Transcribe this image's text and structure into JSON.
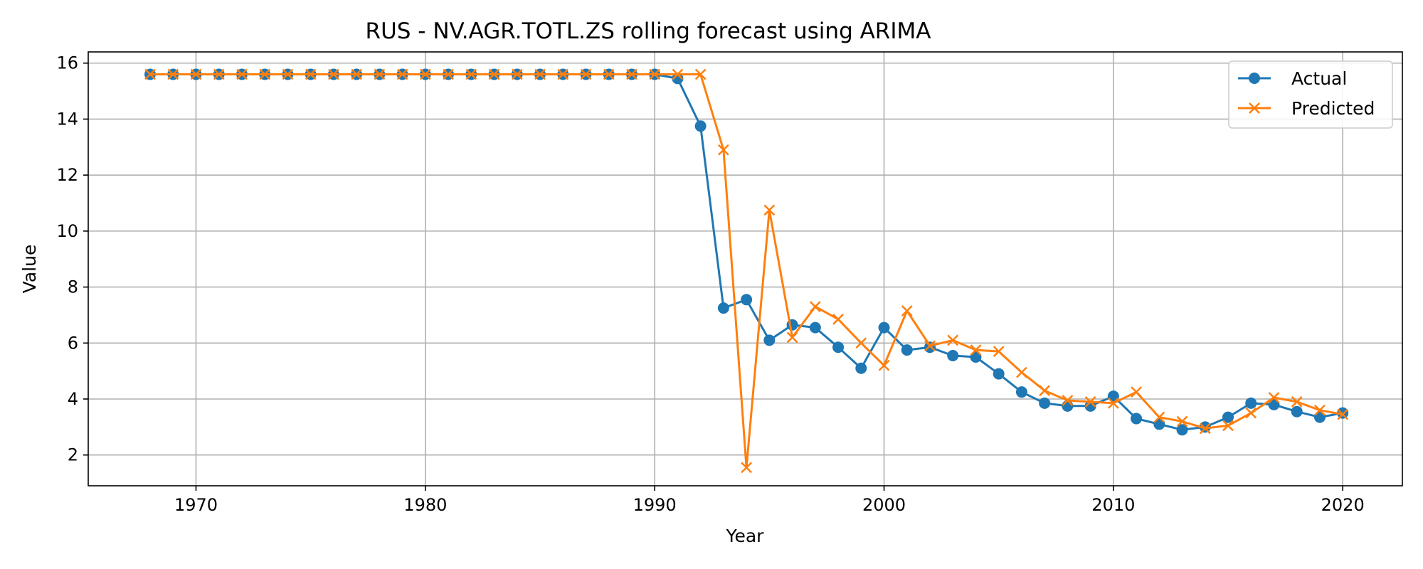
{
  "chart_data": {
    "type": "line",
    "title": "RUS - NV.AGR.TOTL.ZS rolling forecast using ARIMA",
    "xlabel": "Year",
    "ylabel": "Value",
    "xlim": [
      1965.3,
      2022.6
    ],
    "ylim": [
      0.9,
      16.4
    ],
    "xticks": [
      1970,
      1980,
      1990,
      2000,
      2010,
      2020
    ],
    "yticks": [
      2,
      4,
      6,
      8,
      10,
      12,
      14,
      16
    ],
    "grid": true,
    "legend_position": "top-right",
    "x": [
      1968,
      1969,
      1970,
      1971,
      1972,
      1973,
      1974,
      1975,
      1976,
      1977,
      1978,
      1979,
      1980,
      1981,
      1982,
      1983,
      1984,
      1985,
      1986,
      1987,
      1988,
      1989,
      1990,
      1991,
      1992,
      1993,
      1994,
      1995,
      1996,
      1997,
      1998,
      1999,
      2000,
      2001,
      2002,
      2003,
      2004,
      2005,
      2006,
      2007,
      2008,
      2009,
      2010,
      2011,
      2012,
      2013,
      2014,
      2015,
      2016,
      2017,
      2018,
      2019,
      2020
    ],
    "series": [
      {
        "name": "Actual",
        "color": "#1f77b4",
        "marker": "circle",
        "values": [
          15.6,
          15.6,
          15.6,
          15.6,
          15.6,
          15.6,
          15.6,
          15.6,
          15.6,
          15.6,
          15.6,
          15.6,
          15.6,
          15.6,
          15.6,
          15.6,
          15.6,
          15.6,
          15.6,
          15.6,
          15.6,
          15.6,
          15.6,
          15.45,
          13.75,
          7.25,
          7.55,
          6.1,
          6.65,
          6.55,
          5.85,
          5.1,
          6.55,
          5.75,
          5.85,
          5.55,
          5.5,
          4.9,
          4.25,
          3.85,
          3.75,
          3.75,
          4.1,
          3.3,
          3.1,
          2.9,
          3.0,
          3.35,
          3.85,
          3.8,
          3.55,
          3.35,
          3.5
        ]
      },
      {
        "name": "Predicted",
        "color": "#ff7f0e",
        "marker": "x",
        "values": [
          15.6,
          15.6,
          15.6,
          15.6,
          15.6,
          15.6,
          15.6,
          15.6,
          15.6,
          15.6,
          15.6,
          15.6,
          15.6,
          15.6,
          15.6,
          15.6,
          15.6,
          15.6,
          15.6,
          15.6,
          15.6,
          15.6,
          15.6,
          15.6,
          15.6,
          12.9,
          1.55,
          10.75,
          6.2,
          7.3,
          6.85,
          6.0,
          5.2,
          7.15,
          5.9,
          6.1,
          5.75,
          5.7,
          4.95,
          4.3,
          3.95,
          3.9,
          3.85,
          4.25,
          3.35,
          3.2,
          2.95,
          3.05,
          3.5,
          4.05,
          3.9,
          3.6,
          3.45
        ]
      }
    ]
  }
}
